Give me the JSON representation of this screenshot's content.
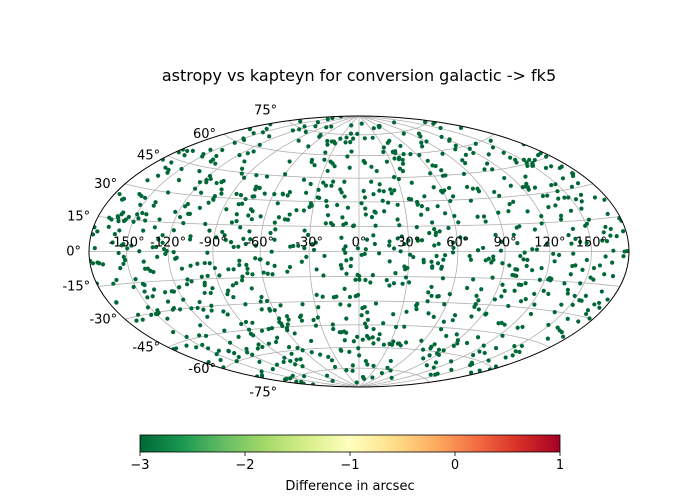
{
  "chart_data": {
    "type": "scatter",
    "projection": "aitoff-hammer",
    "title": "astropy vs kapteyn for conversion galactic -> fk5",
    "lon_ticks": [
      "-150°",
      "-120°",
      "-90°",
      "-60°",
      "-30°",
      "0°",
      "30°",
      "60°",
      "90°",
      "120°",
      "150°"
    ],
    "lat_ticks": [
      "75°",
      "60°",
      "45°",
      "30°",
      "15°",
      "0°",
      "-15°",
      "-30°",
      "-45°",
      "-60°",
      "-75°"
    ],
    "lon_tick_values": [
      -150,
      -120,
      -90,
      -60,
      -30,
      0,
      30,
      60,
      90,
      120,
      150
    ],
    "lat_tick_values": [
      75,
      60,
      45,
      30,
      15,
      0,
      -15,
      -30,
      -45,
      -60,
      -75
    ],
    "grid": true,
    "marker_color": "#006837",
    "point_count": 1000,
    "difference_values": "all approximately -3",
    "colorbar": {
      "label": "Difference in arcsec",
      "ticks": [
        "−3",
        "−2",
        "−1",
        "0",
        "1"
      ],
      "tick_values": [
        -3,
        -2,
        -1,
        0,
        1
      ],
      "range": [
        -3,
        1
      ],
      "colormap": "RdYlGn_r",
      "colors": [
        "#006837",
        "#1a9850",
        "#66bd63",
        "#a6d96a",
        "#d9ef8b",
        "#ffffbf",
        "#fee08b",
        "#fdae61",
        "#f46d43",
        "#d73027",
        "#a50026"
      ]
    }
  }
}
